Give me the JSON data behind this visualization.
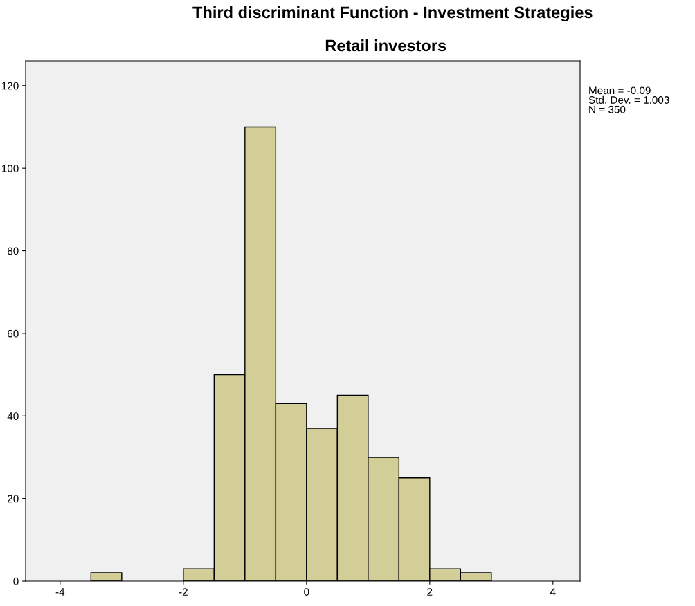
{
  "chart_data": {
    "type": "histogram",
    "title": "Third discriminant Function - Investment Strategies",
    "subtitle": "Retail investors",
    "bins": [
      -3.5,
      -3,
      -2.5,
      -2,
      -1.5,
      -1,
      -0.5,
      0,
      0.5,
      1,
      1.5,
      2,
      2.5,
      3
    ],
    "values": [
      2,
      0,
      0,
      3,
      50,
      110,
      43,
      37,
      45,
      30,
      25,
      3,
      2
    ],
    "color": "#d3ce97",
    "xlim": [
      -4.56,
      4.44
    ],
    "xticks": [
      -4,
      -2,
      0,
      2,
      4
    ],
    "ylim": [
      0,
      126
    ],
    "yticks": [
      0,
      20,
      40,
      60,
      80,
      100,
      120
    ],
    "grid": false,
    "legend": false,
    "annotations": [
      "Mean = -0.09\nStd. Dev. = 1.003\nN = 350"
    ]
  }
}
